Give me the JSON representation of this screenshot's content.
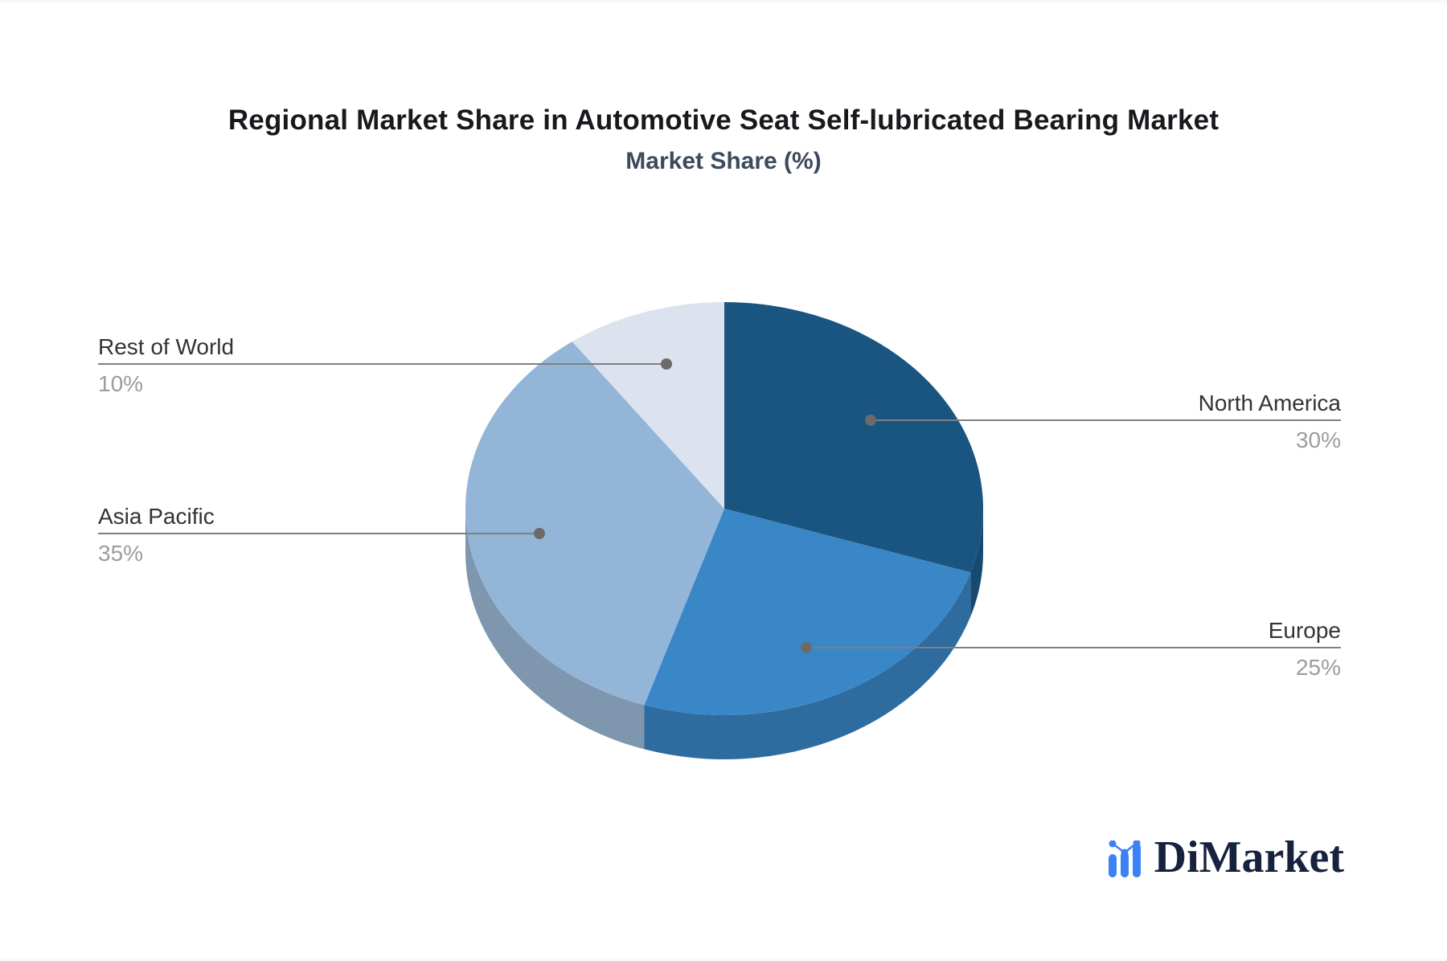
{
  "header": {
    "title": "Regional Market Share in Automotive Seat Self-lubricated Bearing Market",
    "subtitle": "Market Share (%)"
  },
  "chart_data": {
    "type": "pie",
    "title": "Regional Market Share in Automotive Seat Self-lubricated Bearing Market",
    "subtitle": "Market Share (%)",
    "unit": "%",
    "start_angle_deg": 90,
    "direction": "clockwise",
    "style": "3d-pie",
    "slices": [
      {
        "label": "North America",
        "value": 30,
        "display": "30%",
        "color": "#1A5581",
        "side_color": "#164A70",
        "callout_side": "right"
      },
      {
        "label": "Europe",
        "value": 25,
        "display": "25%",
        "color": "#3A87C8",
        "side_color": "#2E6CA0",
        "callout_side": "right"
      },
      {
        "label": "Asia Pacific",
        "value": 35,
        "display": "35%",
        "color": "#93B5D8",
        "side_color": "#7E97AE",
        "callout_side": "left"
      },
      {
        "label": "Rest of World",
        "value": 10,
        "display": "10%",
        "color": "#DCE3EE",
        "side_color": "#B9C4D3",
        "callout_side": "left"
      }
    ],
    "legend_position": "none",
    "grid": false
  },
  "colors": {
    "background": "#ffffff",
    "title_text": "#17191c",
    "subtitle_text": "#3d4a5c",
    "label_name_text": "#333333",
    "label_value_text": "#9c9c9c",
    "connector_line": "#7f7f7f",
    "connector_dot": "#6b6b6b",
    "brand_text": "#17233e",
    "brand_icon": "#3b82f6"
  },
  "branding": {
    "logo_text": "DiMarket"
  }
}
